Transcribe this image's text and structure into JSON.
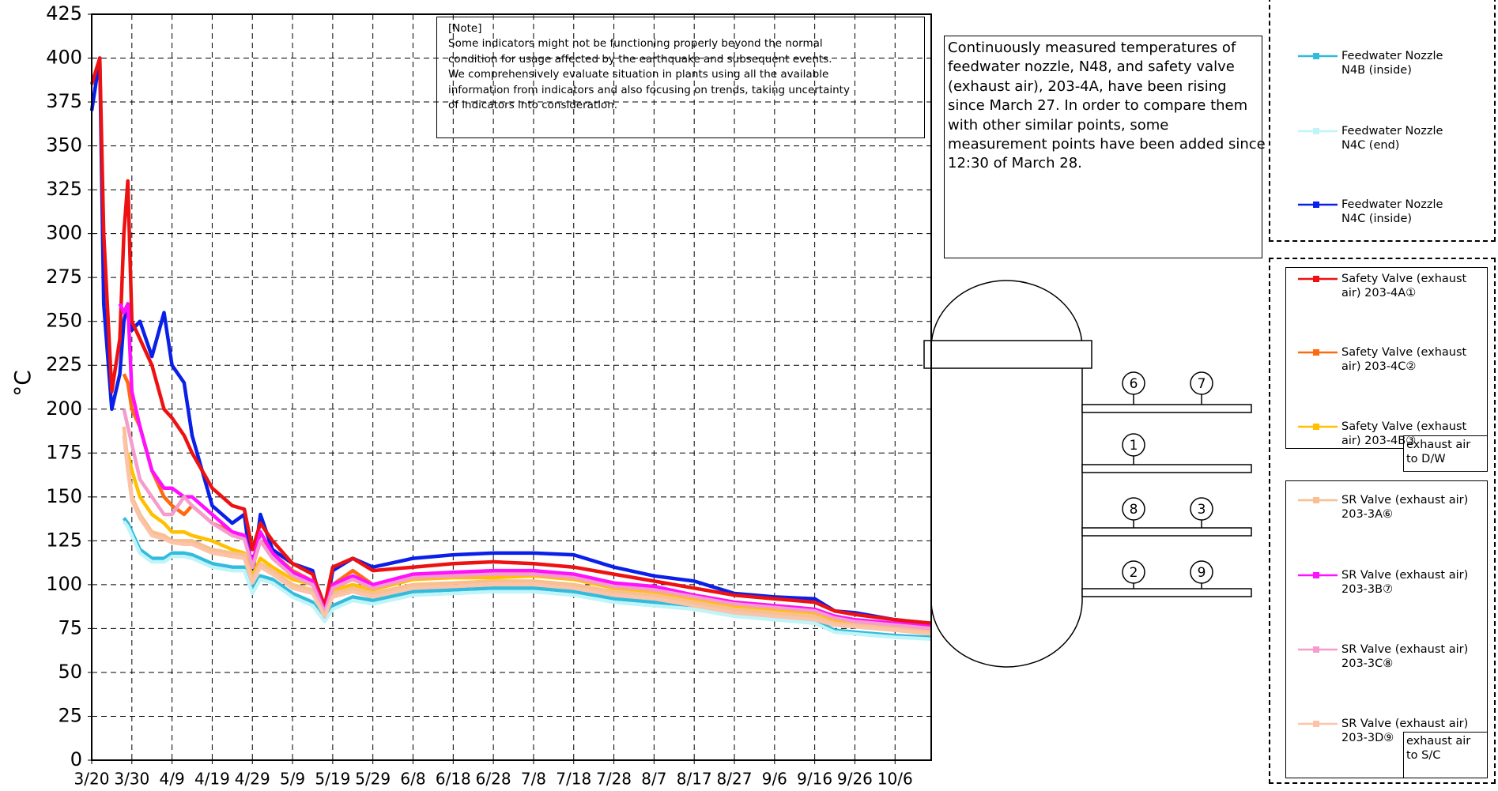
{
  "chart_data": {
    "type": "line",
    "y_label": "°C",
    "grid": true,
    "xlim": [
      0,
      209
    ],
    "ylim": [
      0,
      425
    ],
    "yticks": [
      0,
      25,
      50,
      75,
      100,
      125,
      150,
      175,
      200,
      225,
      250,
      275,
      300,
      325,
      350,
      375,
      400,
      425
    ],
    "xticks": [
      {
        "value": 0,
        "label": "3/20"
      },
      {
        "value": 10,
        "label": "3/30"
      },
      {
        "value": 20,
        "label": "4/9"
      },
      {
        "value": 30,
        "label": "4/19"
      },
      {
        "value": 40,
        "label": "4/29"
      },
      {
        "value": 50,
        "label": "5/9"
      },
      {
        "value": 60,
        "label": "5/19"
      },
      {
        "value": 70,
        "label": "5/29"
      },
      {
        "value": 80,
        "label": "6/8"
      },
      {
        "value": 90,
        "label": "6/18"
      },
      {
        "value": 100,
        "label": "6/28"
      },
      {
        "value": 110,
        "label": "7/8"
      },
      {
        "value": 120,
        "label": "7/18"
      },
      {
        "value": 130,
        "label": "7/28"
      },
      {
        "value": 140,
        "label": "8/7"
      },
      {
        "value": 150,
        "label": "8/17"
      },
      {
        "value": 160,
        "label": "8/27"
      },
      {
        "value": 170,
        "label": "9/6"
      },
      {
        "value": 180,
        "label": "9/16"
      },
      {
        "value": 190,
        "label": "9/26"
      },
      {
        "value": 200,
        "label": "10/6"
      }
    ],
    "x": [
      0,
      2,
      3,
      5,
      7,
      8,
      9,
      10,
      12,
      15,
      18,
      20,
      23,
      25,
      30,
      35,
      38,
      40,
      42,
      45,
      50,
      55,
      58,
      60,
      65,
      70,
      80,
      90,
      100,
      110,
      120,
      130,
      140,
      150,
      160,
      170,
      180,
      185,
      190,
      200,
      209
    ],
    "series": [
      {
        "name": "Feedwater Nozzle N4B (inside)",
        "color": "#33bbdd",
        "values": [
          null,
          null,
          null,
          null,
          null,
          138,
          135,
          130,
          120,
          115,
          115,
          118,
          118,
          117,
          112,
          110,
          110,
          97,
          105,
          103,
          95,
          90,
          80,
          88,
          93,
          91,
          96,
          97,
          98,
          98,
          96,
          92,
          90,
          88,
          84,
          82,
          80,
          74,
          73,
          71,
          70
        ]
      },
      {
        "name": "Feedwater Nozzle N4C (end)",
        "color": "#bff4f8",
        "values": [
          null,
          null,
          null,
          null,
          null,
          136,
          133,
          128,
          118,
          113,
          113,
          116,
          116,
          115,
          110,
          108,
          108,
          95,
          103,
          101,
          93,
          88,
          79,
          86,
          91,
          89,
          94,
          95,
          96,
          96,
          94,
          90,
          88,
          86,
          82,
          80,
          78,
          73,
          72,
          70,
          69
        ]
      },
      {
        "name": "Feedwater Nozzle N4C (inside)",
        "color": "#0a1fe8",
        "values": [
          370,
          400,
          260,
          200,
          220,
          250,
          260,
          245,
          250,
          230,
          255,
          225,
          215,
          185,
          145,
          135,
          140,
          105,
          140,
          120,
          112,
          108,
          82,
          108,
          115,
          110,
          115,
          117,
          118,
          118,
          117,
          110,
          105,
          102,
          95,
          93,
          92,
          85,
          84,
          80,
          78
        ]
      },
      {
        "name": "Safety Valve (exhaust air) 203-4A①",
        "color": "#ee1111",
        "values": [
          385,
          400,
          300,
          210,
          240,
          300,
          330,
          250,
          240,
          225,
          200,
          195,
          185,
          175,
          155,
          145,
          143,
          120,
          135,
          125,
          112,
          106,
          88,
          110,
          115,
          108,
          110,
          112,
          113,
          112,
          110,
          106,
          102,
          98,
          94,
          92,
          90,
          85,
          83,
          80,
          78
        ]
      },
      {
        "name": "Safety Valve (exhaust air) 203-4C②",
        "color": "#ff6a10",
        "values": [
          null,
          null,
          null,
          null,
          null,
          220,
          215,
          200,
          190,
          165,
          150,
          145,
          140,
          145,
          135,
          130,
          128,
          110,
          125,
          118,
          108,
          102,
          85,
          100,
          108,
          100,
          105,
          106,
          107,
          107,
          105,
          100,
          98,
          94,
          90,
          88,
          86,
          82,
          80,
          77,
          75
        ]
      },
      {
        "name": "Safety Valve (exhaust air) 203-4B③",
        "color": "#ffc000",
        "values": [
          null,
          null,
          null,
          null,
          null,
          null,
          175,
          165,
          150,
          140,
          135,
          130,
          130,
          128,
          125,
          120,
          118,
          105,
          115,
          110,
          103,
          100,
          85,
          97,
          100,
          97,
          103,
          104,
          104,
          105,
          103,
          98,
          96,
          92,
          88,
          86,
          84,
          80,
          78,
          76,
          74
        ]
      },
      {
        "name": "SR Valve (exhaust air) 203-3A⑥",
        "color": "#f8bf90",
        "values": [
          null,
          null,
          null,
          null,
          null,
          190,
          170,
          150,
          140,
          130,
          128,
          125,
          125,
          125,
          120,
          118,
          117,
          103,
          112,
          108,
          100,
          97,
          83,
          95,
          98,
          95,
          100,
          101,
          102,
          102,
          100,
          96,
          94,
          90,
          86,
          84,
          82,
          78,
          77,
          75,
          73
        ]
      },
      {
        "name": "SR Valve (exhaust air) 203-3B⑦",
        "color": "#ff10ff",
        "values": [
          null,
          null,
          null,
          null,
          260,
          255,
          260,
          210,
          190,
          165,
          155,
          155,
          150,
          150,
          140,
          130,
          128,
          112,
          130,
          118,
          107,
          102,
          85,
          100,
          105,
          100,
          106,
          107,
          108,
          108,
          106,
          101,
          99,
          94,
          90,
          88,
          86,
          82,
          80,
          78,
          76
        ]
      },
      {
        "name": "SR Valve (exhaust air) 203-3C⑧",
        "color": "#f59ccc",
        "values": [
          null,
          null,
          null,
          null,
          null,
          200,
          190,
          180,
          160,
          150,
          140,
          140,
          150,
          145,
          135,
          128,
          126,
          110,
          125,
          115,
          105,
          100,
          84,
          98,
          103,
          98,
          104,
          105,
          106,
          106,
          104,
          99,
          97,
          93,
          89,
          87,
          85,
          81,
          79,
          77,
          75
        ]
      },
      {
        "name": "SR Valve (exhaust air) 203-3D⑨",
        "color": "#fbc3a8",
        "values": [
          null,
          null,
          null,
          null,
          null,
          185,
          165,
          148,
          138,
          128,
          126,
          124,
          123,
          123,
          118,
          116,
          115,
          101,
          110,
          106,
          98,
          95,
          82,
          93,
          96,
          93,
          98,
          99,
          100,
          100,
          98,
          94,
          92,
          88,
          84,
          82,
          80,
          77,
          76,
          74,
          72
        ]
      }
    ]
  },
  "note": {
    "title": "[Note]",
    "lines": [
      "Some indicators might not be functioning properly beyond the normal",
      "condition for usage affected by the earthquake and subsequent events.",
      "We comprehensively evaluate situation in plants using all the available",
      "information from indicators and also focusing on trends, taking uncertainty",
      "of indicators into consideration."
    ]
  },
  "annotation": {
    "lines": [
      "Continuously measured temperatures of",
      "feedwater nozzle, N48, and safety valve",
      "(exhaust air), 203-4A, have been rising",
      "since March 27. In order to compare them",
      "with other similar points, some",
      "measurement points have been added since",
      "12:30 of March 28."
    ]
  },
  "legend_groups": [
    "exhaust air to D/W",
    "exhaust air to S/C"
  ],
  "diagram": {
    "labels": [
      "6",
      "7",
      "1",
      "8",
      "3",
      "2",
      "9"
    ]
  }
}
